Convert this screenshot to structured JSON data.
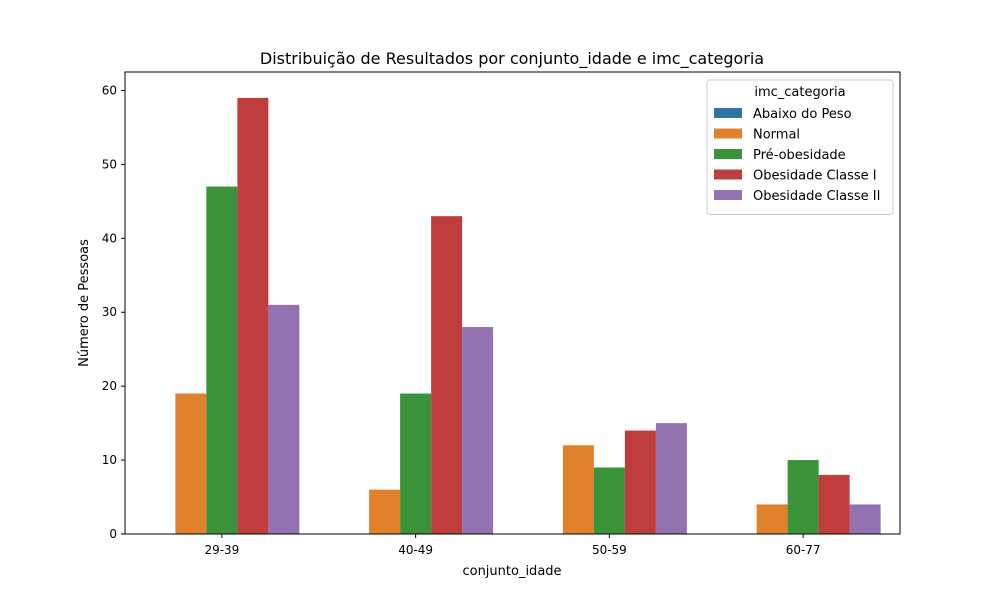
{
  "chart_data": {
    "type": "bar",
    "title": "Distribuição de Resultados por conjunto_idade e imc_categoria",
    "xlabel": "conjunto_idade",
    "ylabel": "Número de Pessoas",
    "categories": [
      "29-39",
      "40-49",
      "50-59",
      "60-77"
    ],
    "ylim": [
      0,
      62.5
    ],
    "yticks": [
      0,
      10,
      20,
      30,
      40,
      50,
      60
    ],
    "grid": false,
    "legend": {
      "title": "imc_categoria",
      "placement": "top-right"
    },
    "series": [
      {
        "name": "Abaixo do Peso",
        "color": "#3274a1",
        "values": [
          0,
          0,
          0,
          0
        ]
      },
      {
        "name": "Normal",
        "color": "#e1812c",
        "values": [
          19,
          6,
          12,
          4
        ]
      },
      {
        "name": "Pré-obesidade",
        "color": "#3a923a",
        "values": [
          47,
          19,
          9,
          10
        ]
      },
      {
        "name": "Obesidade Classe I",
        "color": "#c03d3e",
        "values": [
          59,
          43,
          14,
          8
        ]
      },
      {
        "name": "Obesidade Classe II",
        "color": "#9372b2",
        "values": [
          31,
          28,
          15,
          4
        ]
      }
    ]
  }
}
